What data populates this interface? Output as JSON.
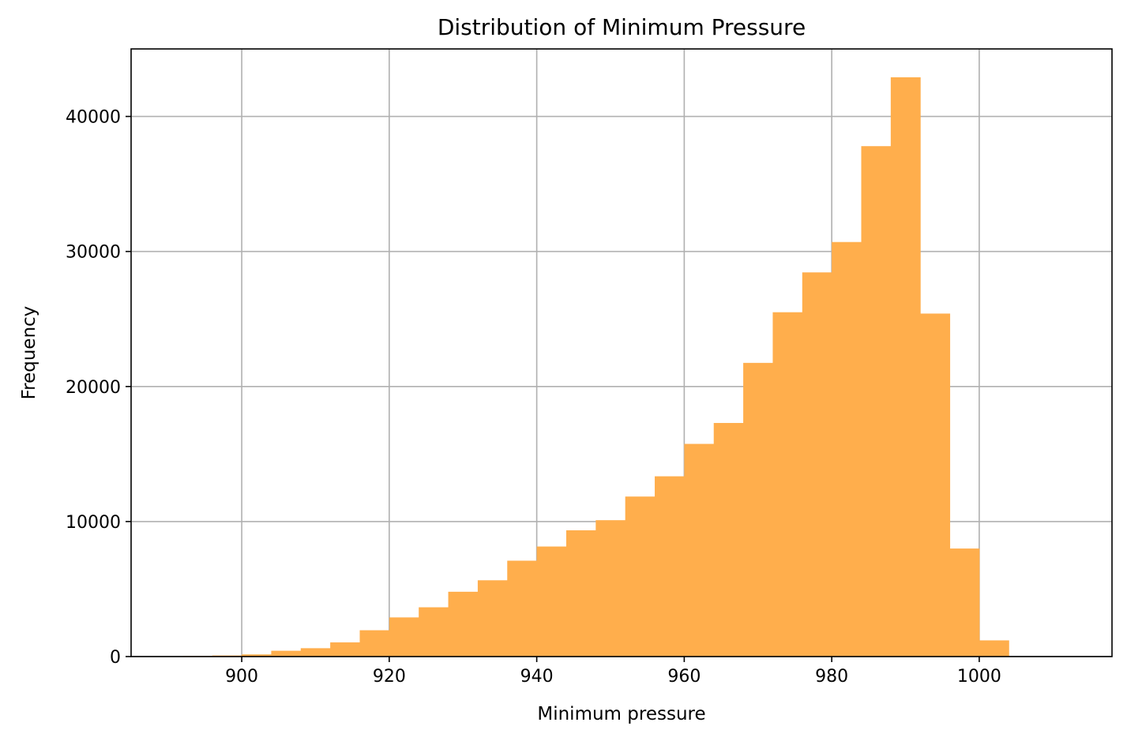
{
  "chart_data": {
    "type": "bar",
    "title": "Distribution of Minimum Pressure",
    "xlabel": "Minimum pressure",
    "ylabel": "Frequency",
    "xlim": [
      885,
      1018
    ],
    "ylim": [
      0,
      45000
    ],
    "x_ticks": [
      900,
      920,
      940,
      960,
      980,
      1000
    ],
    "y_ticks": [
      0,
      10000,
      20000,
      30000,
      40000
    ],
    "grid": true,
    "bar_color": "#ffae4c",
    "bin_edges": [
      888,
      892,
      896,
      900,
      904,
      908,
      912,
      916,
      920,
      924,
      928,
      932,
      936,
      940,
      944,
      948,
      952,
      956,
      960,
      964,
      968,
      972,
      976,
      980,
      984,
      988,
      992,
      996,
      1000,
      1004,
      1008
    ],
    "values": [
      30,
      40,
      80,
      160,
      430,
      620,
      1050,
      1950,
      2900,
      3650,
      4800,
      5650,
      7100,
      8150,
      9350,
      10100,
      11850,
      13350,
      15750,
      17300,
      21750,
      25500,
      28450,
      30700,
      37800,
      42900,
      25400,
      8000,
      1200,
      20
    ]
  }
}
